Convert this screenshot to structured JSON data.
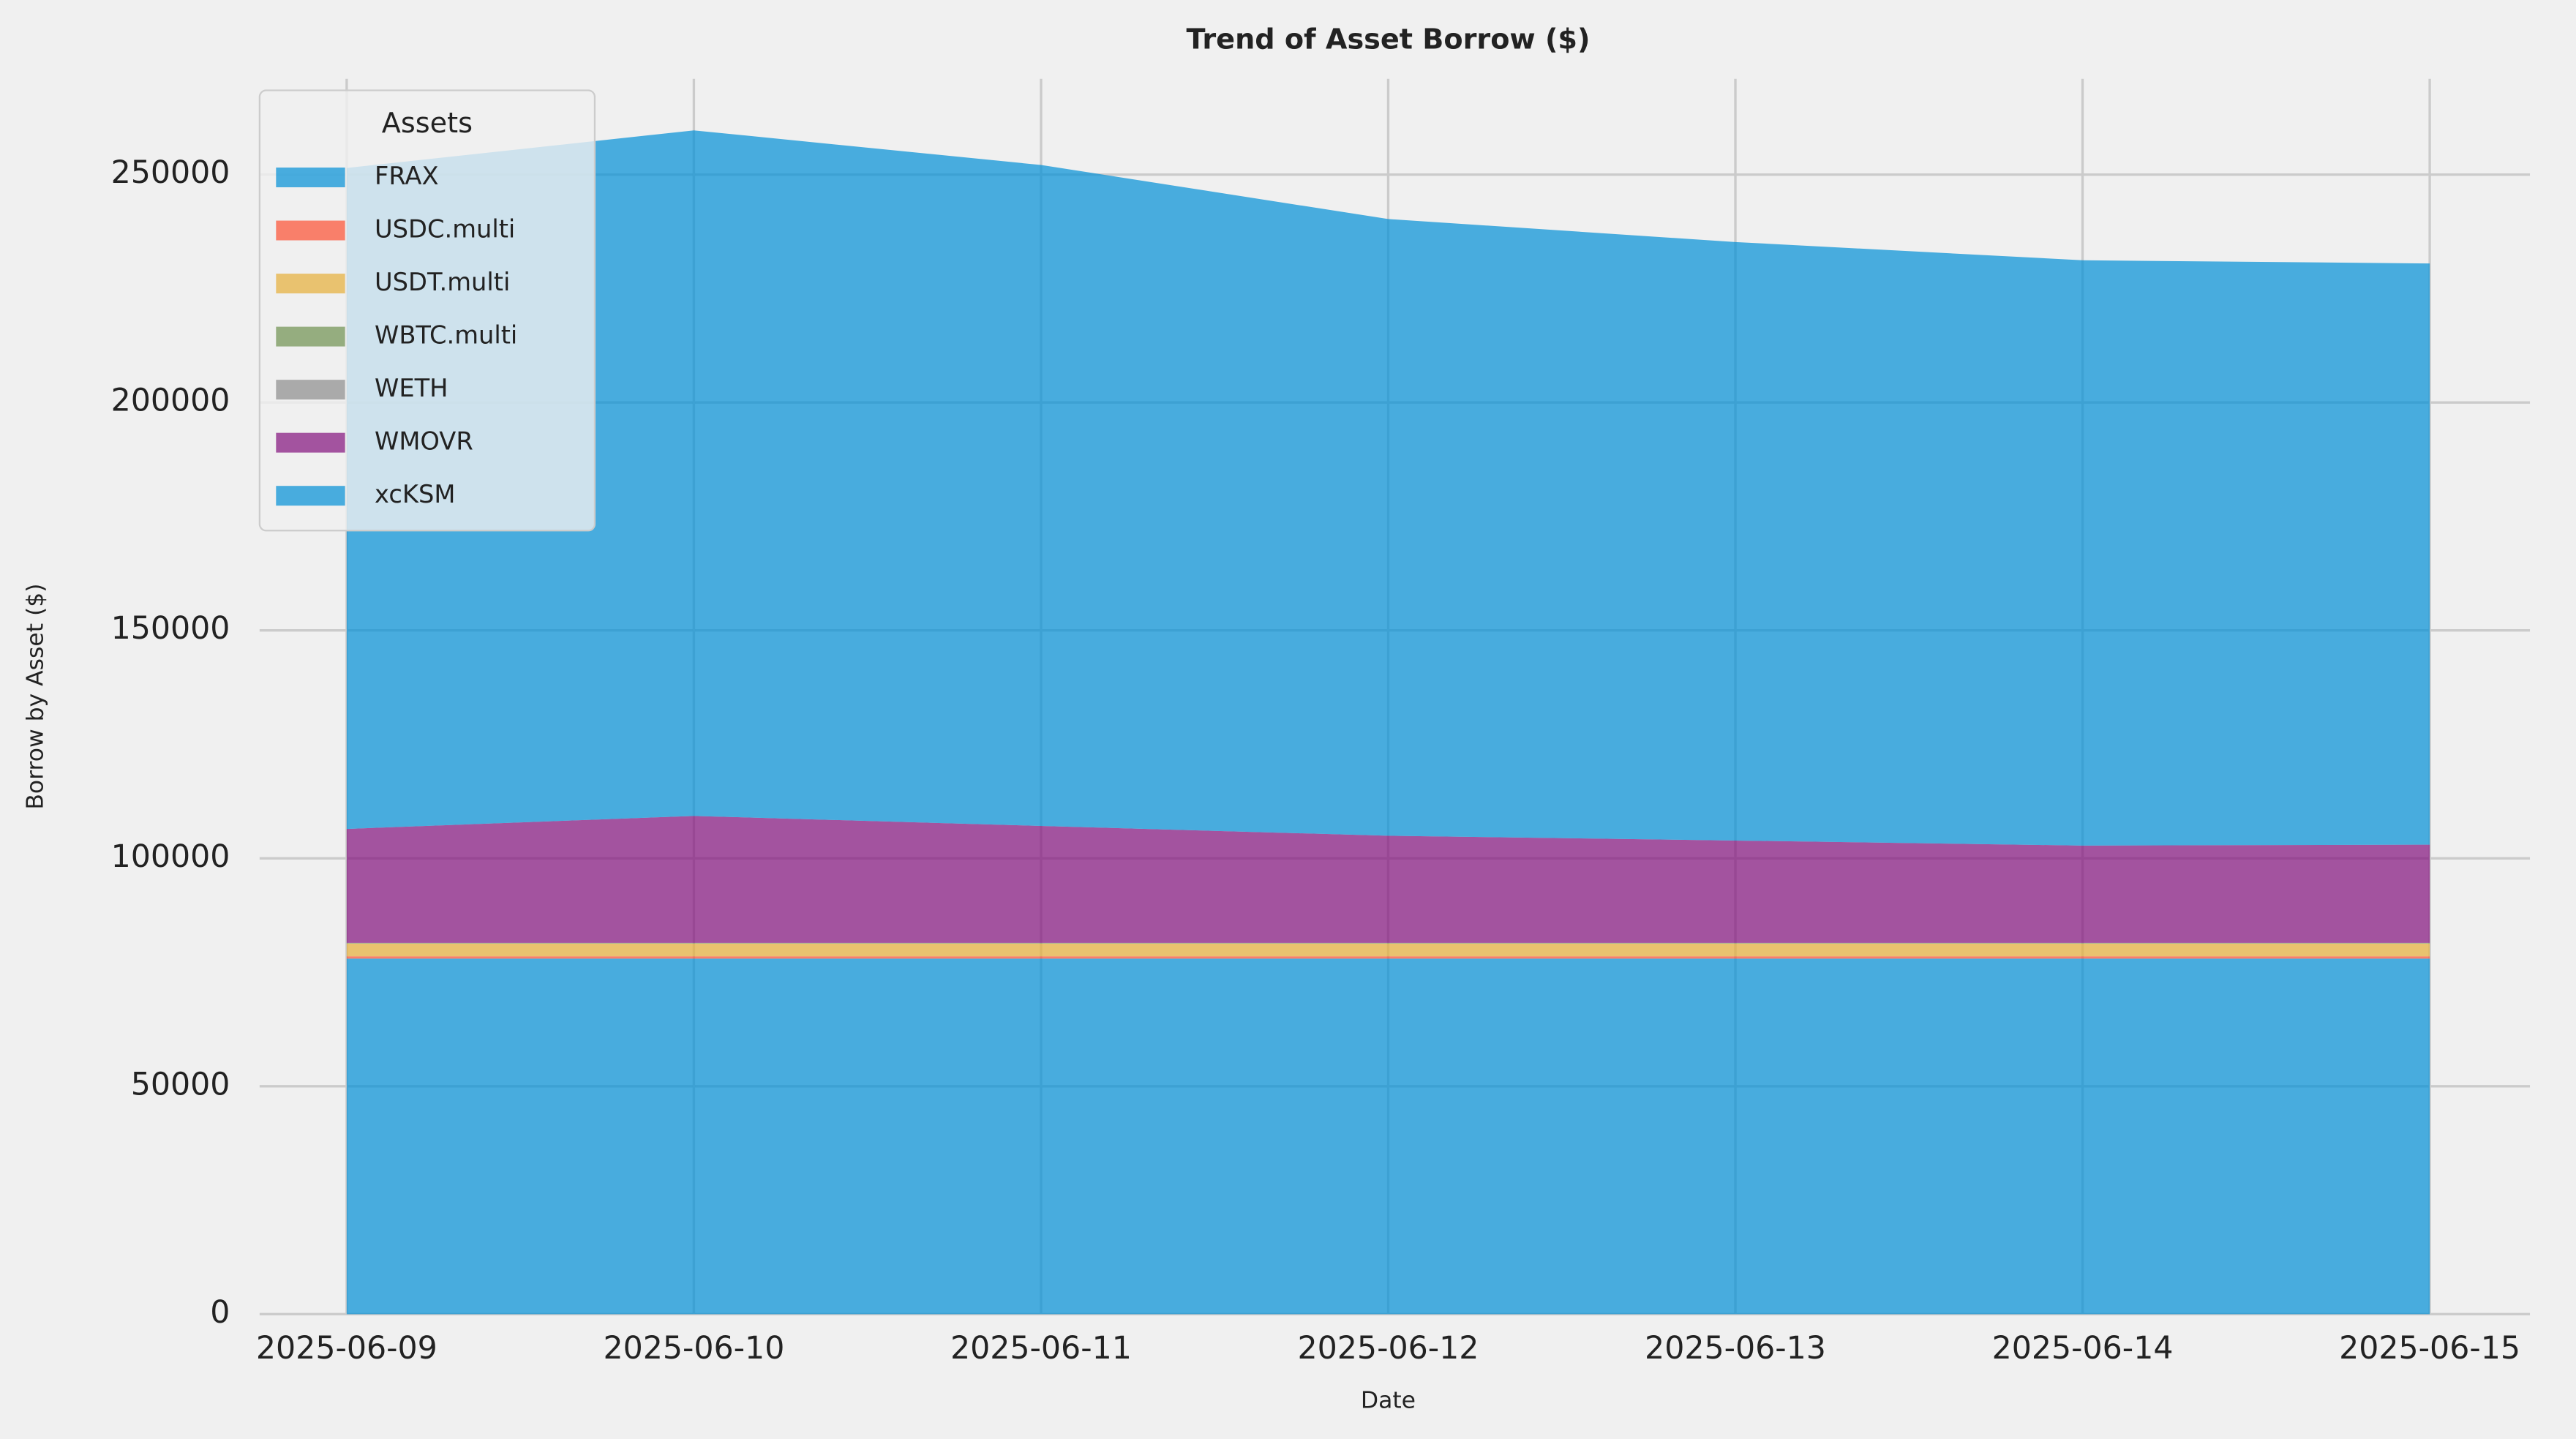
{
  "chart_data": {
    "type": "stacked_area",
    "title": "Trend of Asset Borrow ($)",
    "x_label": "Date",
    "y_label": "Borrow by Asset ($)",
    "x": [
      "2025-06-09",
      "2025-06-10",
      "2025-06-11",
      "2025-06-12",
      "2025-06-13",
      "2025-06-14",
      "2025-06-15"
    ],
    "series": [
      {
        "name": "FRAX",
        "color": "#008fd5",
        "values": [
          78000,
          78000,
          78000,
          78000,
          78000,
          78000,
          78000
        ]
      },
      {
        "name": "USDC.multi",
        "color": "#fc4f30",
        "values": [
          500,
          500,
          500,
          500,
          500,
          500,
          500
        ]
      },
      {
        "name": "USDT.multi",
        "color": "#e5ae38",
        "values": [
          2800,
          2800,
          2800,
          2800,
          2800,
          2800,
          2800
        ]
      },
      {
        "name": "WBTC.multi",
        "color": "#6d904f",
        "values": [
          100,
          100,
          100,
          100,
          100,
          100,
          100
        ]
      },
      {
        "name": "WETH",
        "color": "#8b8b8b",
        "values": [
          50,
          50,
          50,
          50,
          50,
          50,
          50
        ]
      },
      {
        "name": "WMOVR",
        "color": "#810f7c",
        "values": [
          25000,
          27850,
          25650,
          23500,
          22450,
          21350,
          21550
        ]
      },
      {
        "name": "xcKSM",
        "color": "#008fd5",
        "values": [
          145000,
          150400,
          145000,
          135300,
          131300,
          128400,
          127500
        ]
      }
    ],
    "ylim": [
      0,
      271000
    ],
    "yticks": [
      0,
      50000,
      100000,
      150000,
      200000,
      250000
    ],
    "grid": true,
    "legend_title": "Assets",
    "legend_position": "upper-left"
  }
}
